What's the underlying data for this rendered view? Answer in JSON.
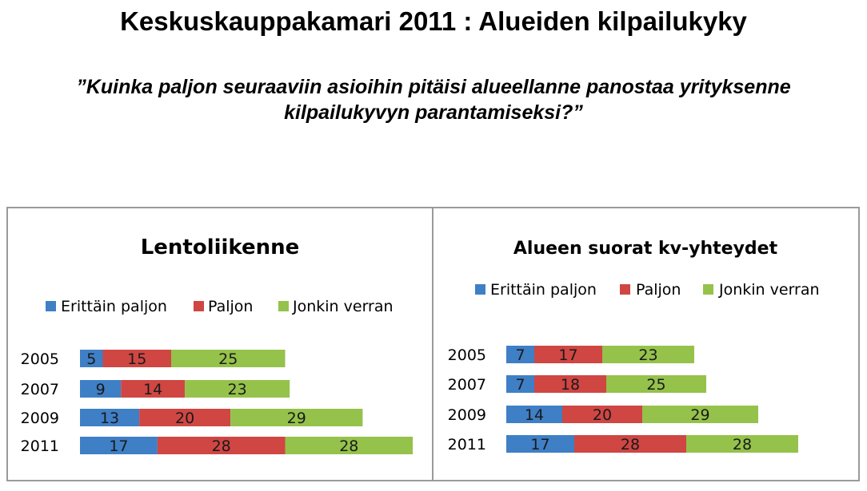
{
  "header": {
    "title": "Keskuskauppakamari 2011 : Alueiden kilpailukyky",
    "subtitle_line1": "”Kuinka paljon seuraaviin asioihin pitäisi alueellanne panostaa yrityksenne",
    "subtitle_line2": "kilpailukyvyn parantamiseksi?”"
  },
  "colors": {
    "erittain_paljon": "#3f7fc6",
    "paljon": "#cf4643",
    "jonkin_verran": "#95c24b"
  },
  "chart_data": [
    {
      "type": "bar",
      "orientation": "horizontal",
      "stacked": true,
      "title": "Lentoliikenne",
      "categories": [
        "2005",
        "2007",
        "2009",
        "2011"
      ],
      "series": [
        {
          "name": "Erittäin paljon",
          "values": [
            5,
            9,
            13,
            17
          ]
        },
        {
          "name": "Paljon",
          "values": [
            15,
            14,
            20,
            28
          ]
        },
        {
          "name": "Jonkin verran",
          "values": [
            25,
            23,
            29,
            28
          ]
        }
      ],
      "legend": "top",
      "grid": false
    },
    {
      "type": "bar",
      "orientation": "horizontal",
      "stacked": true,
      "title": "Alueen suorat kv-yhteydet",
      "categories": [
        "2005",
        "2007",
        "2009",
        "2011"
      ],
      "series": [
        {
          "name": "Erittäin paljon",
          "values": [
            7,
            7,
            14,
            17
          ]
        },
        {
          "name": "Paljon",
          "values": [
            17,
            18,
            20,
            28
          ]
        },
        {
          "name": "Jonkin verran",
          "values": [
            23,
            25,
            29,
            28
          ]
        }
      ],
      "legend": "top",
      "grid": false
    }
  ]
}
